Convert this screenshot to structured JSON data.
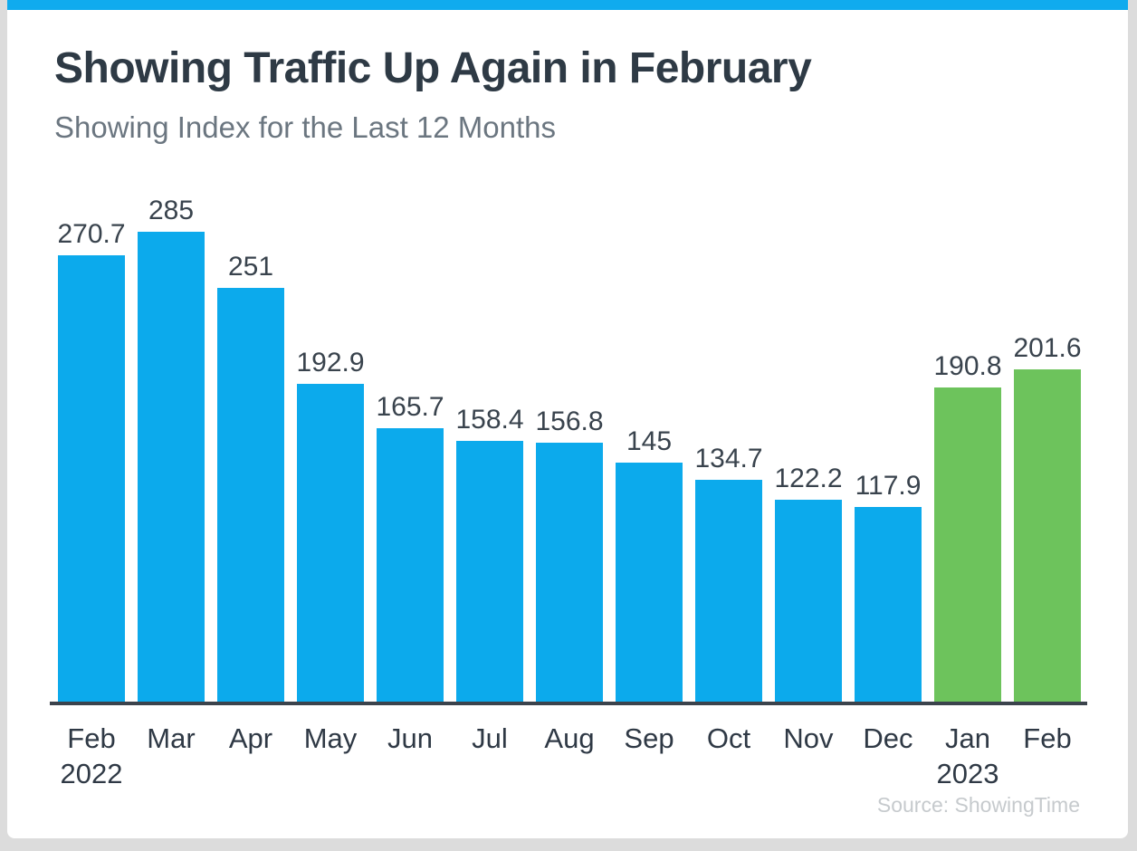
{
  "page": {
    "title": "Showing Traffic Up Again in February",
    "subtitle": "Showing Index for the Last 12 Months",
    "source": "Source: ShowingTime"
  },
  "colors": {
    "top_stripe": "#10abee",
    "bar_blue": "#0caaec",
    "bar_green": "#6dc35c",
    "title_text": "#2e3a45",
    "subtitle_text": "#6b7680",
    "value_label_text": "#39434d",
    "month_label_text": "#2f3945",
    "axis_line": "#3b434c",
    "source_text": "#c6cacd",
    "card_bg": "#ffffff",
    "frame_bg": "#dcdcdc"
  },
  "chart_data": {
    "type": "bar",
    "title": "Showing Traffic Up Again in February",
    "subtitle": "Showing Index for the Last 12 Months",
    "xlabel": "",
    "ylabel": "Showing Index",
    "ylim": [
      0,
      285
    ],
    "grid": false,
    "legend": "none",
    "annotation": "Source: ShowingTime",
    "categories": [
      {
        "label": "Feb",
        "year": "2022"
      },
      {
        "label": "Mar",
        "year": ""
      },
      {
        "label": "Apr",
        "year": ""
      },
      {
        "label": "May",
        "year": ""
      },
      {
        "label": "Jun",
        "year": ""
      },
      {
        "label": "Jul",
        "year": ""
      },
      {
        "label": "Aug",
        "year": ""
      },
      {
        "label": "Sep",
        "year": ""
      },
      {
        "label": "Oct",
        "year": ""
      },
      {
        "label": "Nov",
        "year": ""
      },
      {
        "label": "Dec",
        "year": ""
      },
      {
        "label": "Jan",
        "year": "2023"
      },
      {
        "label": "Feb",
        "year": ""
      }
    ],
    "values": [
      270.7,
      285,
      251,
      192.9,
      165.7,
      158.4,
      156.8,
      145,
      134.7,
      122.2,
      117.9,
      190.8,
      201.6
    ],
    "value_labels": [
      "270.7",
      "285",
      "251",
      "192.9",
      "165.7",
      "158.4",
      "156.8",
      "145",
      "134.7",
      "122.2",
      "117.9",
      "190.8",
      "201.6"
    ],
    "bar_colors": [
      "#0caaec",
      "#0caaec",
      "#0caaec",
      "#0caaec",
      "#0caaec",
      "#0caaec",
      "#0caaec",
      "#0caaec",
      "#0caaec",
      "#0caaec",
      "#0caaec",
      "#6dc35c",
      "#6dc35c"
    ]
  }
}
